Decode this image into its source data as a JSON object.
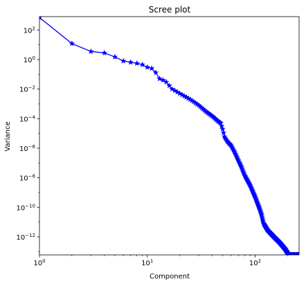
{
  "chart_data": {
    "type": "line",
    "title": "Scree plot",
    "xlabel": "Component",
    "ylabel": "Variance",
    "xscale": "log",
    "yscale": "log",
    "xlim": [
      1,
      256
    ],
    "ylim": [
      6e-14,
      800
    ],
    "grid": false,
    "legend": "none",
    "x_ticks": [
      {
        "value": 1,
        "base": "10",
        "exp": "0"
      },
      {
        "value": 10,
        "base": "10",
        "exp": "1"
      },
      {
        "value": 100,
        "base": "10",
        "exp": "2"
      }
    ],
    "y_ticks": [
      {
        "value": 100,
        "base": "10",
        "exp": "2"
      },
      {
        "value": 1,
        "base": "10",
        "exp": "0"
      },
      {
        "value": 0.01,
        "base": "10",
        "exp": "−2"
      },
      {
        "value": 0.0001,
        "base": "10",
        "exp": "−4"
      },
      {
        "value": 1e-06,
        "base": "10",
        "exp": "−6"
      },
      {
        "value": 1e-08,
        "base": "10",
        "exp": "−8"
      },
      {
        "value": 1e-10,
        "base": "10",
        "exp": "−10"
      },
      {
        "value": 1e-12,
        "base": "10",
        "exp": "−12"
      }
    ],
    "series": [
      {
        "color": "#0000ff",
        "marker": "star",
        "keypoints": [
          [
            1,
            700
          ],
          [
            2,
            12
          ],
          [
            3,
            3.5
          ],
          [
            4,
            2.8
          ],
          [
            5,
            1.5
          ],
          [
            6,
            0.8
          ],
          [
            7,
            0.65
          ],
          [
            8,
            0.55
          ],
          [
            9,
            0.45
          ],
          [
            10,
            0.3
          ],
          [
            11,
            0.25
          ],
          [
            12,
            0.13
          ],
          [
            13,
            0.05
          ],
          [
            14,
            0.04
          ],
          [
            15,
            0.03
          ],
          [
            17,
            0.01
          ],
          [
            20,
            0.005
          ],
          [
            25,
            0.002
          ],
          [
            30,
            0.0008
          ],
          [
            35,
            0.0003
          ],
          [
            40,
            0.00015
          ],
          [
            45,
            7e-05
          ],
          [
            48,
            5e-05
          ],
          [
            50,
            2e-05
          ],
          [
            52,
            6e-06
          ],
          [
            55,
            3e-06
          ],
          [
            60,
            1.5e-06
          ],
          [
            65,
            5e-07
          ],
          [
            70,
            1.5e-07
          ],
          [
            75,
            5e-08
          ],
          [
            80,
            1.5e-08
          ],
          [
            90,
            3e-09
          ],
          [
            100,
            5e-10
          ],
          [
            110,
            8e-11
          ],
          [
            115,
            3e-11
          ],
          [
            120,
            8e-12
          ],
          [
            130,
            3e-12
          ],
          [
            150,
            1e-12
          ],
          [
            170,
            4e-13
          ],
          [
            190,
            1.5e-13
          ],
          [
            200,
            8e-14
          ],
          [
            210,
            6e-14
          ],
          [
            220,
            6e-14
          ],
          [
            256,
            6e-14
          ]
        ]
      }
    ]
  }
}
